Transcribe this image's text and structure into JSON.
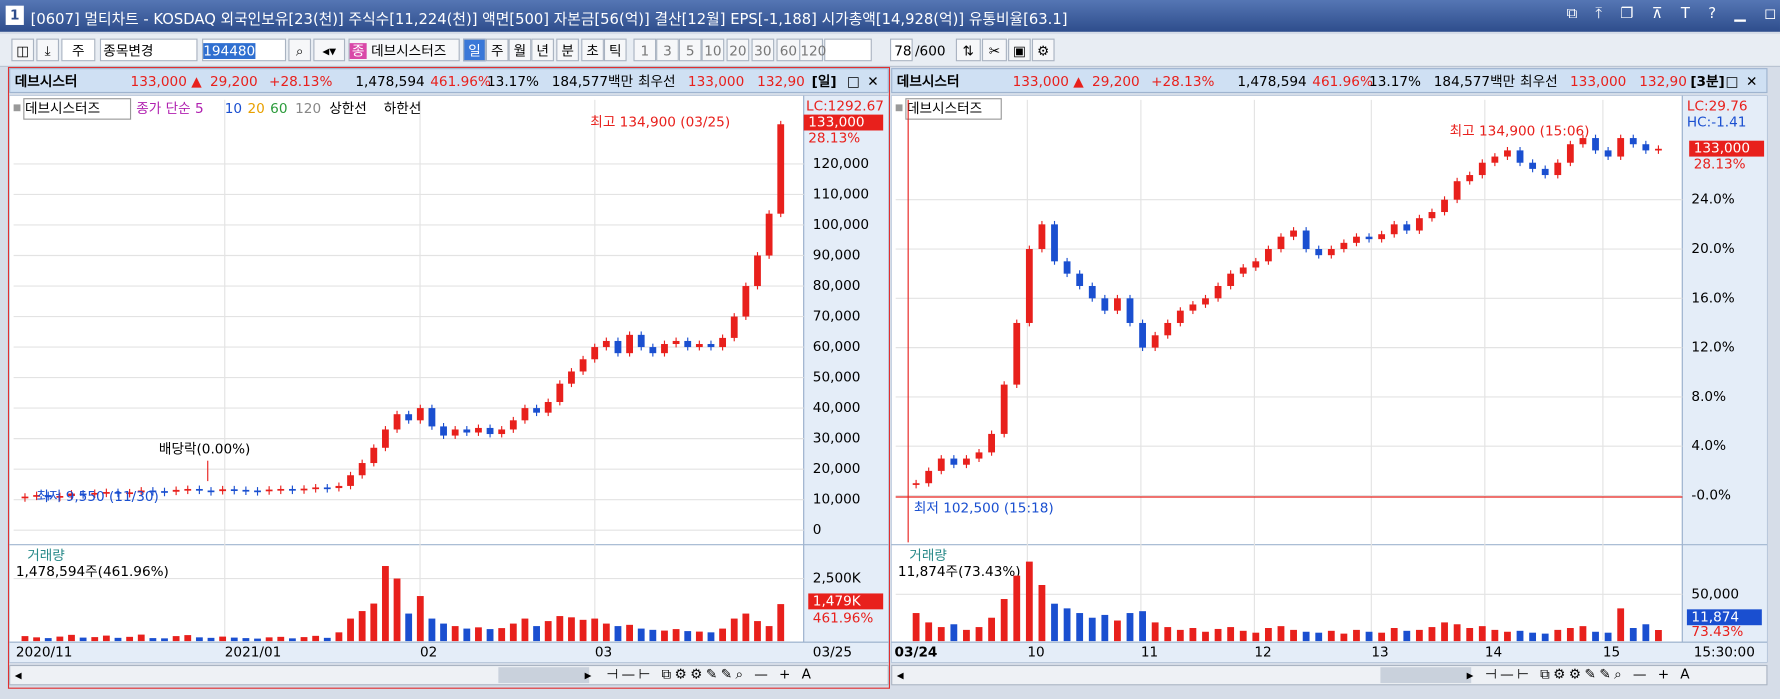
{
  "window": {
    "badge": "1",
    "title": "[0607] 멀티차트 - KOSDAQ 외국인보유[23(천)] 주식수[11,224(천)] 액면[500] 자본금[56(억)] 결산[12월] EPS[-1,188] 시가총액[14,928(억)] 유통비율[63.1]"
  },
  "toolbar": {
    "type_select": "주",
    "stock_select": "종목변경",
    "code": "194480",
    "name": "데브시스터즈",
    "periods": [
      "일",
      "주",
      "월",
      "년",
      "분",
      "초",
      "틱"
    ],
    "intervals": [
      "1",
      "3",
      "5",
      "10",
      "20",
      "30",
      "60",
      "120"
    ],
    "count": "78",
    "total": "/600"
  },
  "panels": [
    {
      "header": {
        "name": "데브시스터",
        "price": "133,000 ▲",
        "change": "29,200",
        "rate": "+28.13%",
        "volume": "1,478,594",
        "vol_rate": "461.96%",
        "turnover": "13.17%",
        "amount": "184,577백만",
        "label": "최우선",
        "bid": "133,000",
        "ask": "132,90",
        "period": "[일]"
      },
      "legend": [
        "데브시스터즈",
        "종가 단순 5",
        "10",
        "20",
        "60",
        "120",
        "상한선",
        "하한선"
      ],
      "annotations": {
        "high": "최고 134,900 (03/25)",
        "low": "최저 9,550 (11/30)",
        "ex_div": "배당락(0.00%)"
      },
      "axis_info": {
        "lc": "LC:1292.67",
        "price": "133,000",
        "rate": "28.13%"
      },
      "ylim": [
        -4000,
        141000
      ],
      "yticks": [
        0,
        {
          "value": 10000,
          "label": "10,000"
        },
        {
          "value": 20000,
          "label": "20,000"
        },
        {
          "value": 30000,
          "label": "30,000"
        },
        {
          "value": 40000,
          "label": "40,000"
        },
        {
          "value": 50000,
          "label": "50,000"
        },
        {
          "value": 60000,
          "label": "60,000"
        },
        {
          "value": 70000,
          "label": "70,000"
        },
        {
          "value": 80000,
          "label": "80,000"
        },
        {
          "value": 90000,
          "label": "90,000"
        },
        {
          "value": 100000,
          "label": "100,000"
        },
        {
          "value": 110000,
          "label": "110,000"
        },
        {
          "value": 120000,
          "label": "120,000"
        }
      ],
      "closes": [
        11000,
        11500,
        10800,
        11200,
        12000,
        11800,
        12200,
        12500,
        12000,
        12400,
        13000,
        12800,
        12600,
        13200,
        13500,
        13000,
        12800,
        13400,
        13200,
        13000,
        12900,
        13300,
        13500,
        13200,
        13600,
        14000,
        13800,
        14500,
        18000,
        22000,
        27000,
        33000,
        38000,
        36000,
        40000,
        34000,
        31000,
        33000,
        32000,
        33500,
        31500,
        33000,
        36000,
        40000,
        38500,
        42000,
        48000,
        52000,
        56000,
        60000,
        62000,
        58000,
        64000,
        60000,
        58000,
        61000,
        62000,
        60000,
        61000,
        60000,
        63000,
        70000,
        80000,
        90000,
        103700,
        133000
      ],
      "volume": {
        "title": "거래량",
        "summary": "1,478,594주(461.96%)",
        "current": "1,479K",
        "rate": "461.96%",
        "vlim": [
          0,
          3400000
        ],
        "vticks": [
          {
            "value": 2500000,
            "label": "2,500K"
          }
        ],
        "values": [
          200000,
          150000,
          120000,
          180000,
          250000,
          140000,
          160000,
          220000,
          130000,
          170000,
          260000,
          120000,
          110000,
          200000,
          240000,
          150000,
          130000,
          180000,
          140000,
          120000,
          100000,
          150000,
          170000,
          110000,
          160000,
          210000,
          130000,
          350000,
          900000,
          1200000,
          1500000,
          3000000,
          2500000,
          1100000,
          1800000,
          900000,
          700000,
          600000,
          500000,
          550000,
          480000,
          520000,
          700000,
          900000,
          600000,
          800000,
          1000000,
          950000,
          850000,
          900000,
          700000,
          600000,
          650000,
          500000,
          450000,
          420000,
          480000,
          400000,
          380000,
          350000,
          500000,
          900000,
          1100000,
          800000,
          600000,
          1478594
        ]
      },
      "xlabels": [
        "2020/11",
        "2021/01",
        "02",
        "03",
        "03/25"
      ]
    },
    {
      "header": {
        "name": "데브시스터",
        "price": "133,000 ▲",
        "change": "29,200",
        "rate": "+28.13%",
        "volume": "1,478,594",
        "vol_rate": "461.96%",
        "turnover": "13.17%",
        "amount": "184,577백만",
        "label": "최우선",
        "bid": "133,000",
        "ask": "132,90",
        "period": "[3분]"
      },
      "legend": [
        "데브시스터즈"
      ],
      "annotations": {
        "high": "최고 134,900 (15:06)",
        "low": "최저 102,500 (15:18)"
      },
      "axis_info": {
        "lc": "LC:29.76",
        "hc": "HC:-1.41",
        "price": "133,000",
        "rate": "28.13%"
      },
      "ylim": [
        -3.8,
        32.1
      ],
      "yticks": [
        {
          "value": 0,
          "label": "-0.0%"
        },
        {
          "value": 4,
          "label": "4.0%"
        },
        {
          "value": 8,
          "label": "8.0%"
        },
        {
          "value": 12,
          "label": "12.0%"
        },
        {
          "value": 16,
          "label": "16.0%"
        },
        {
          "value": 20,
          "label": "20.0%"
        },
        {
          "value": 24,
          "label": "24.0%"
        }
      ],
      "closes": [
        1.0,
        2,
        3,
        2.5,
        3,
        3.5,
        5,
        9,
        14,
        20,
        22,
        19,
        18,
        17,
        16,
        15,
        16,
        14,
        12,
        13,
        14,
        15,
        15.5,
        16,
        17,
        18,
        18.5,
        19,
        20,
        21,
        21.5,
        20,
        19.5,
        20,
        20.5,
        21,
        20.8,
        21.2,
        22,
        21.5,
        22.5,
        23,
        24,
        25.5,
        26,
        27,
        27.5,
        28,
        27,
        26.5,
        26,
        27,
        28.5,
        29,
        28,
        27.5,
        29,
        28.5,
        28,
        28.13
      ],
      "volume": {
        "title": "거래량",
        "summary": "11,874주(73.43%)",
        "current": "11,874",
        "rate": "73.43%",
        "vlim": [
          0,
          91000
        ],
        "vticks": [
          {
            "value": 50000,
            "label": "50,000"
          }
        ],
        "values": [
          30000,
          20000,
          15000,
          18000,
          12000,
          15000,
          25000,
          45000,
          70000,
          85000,
          60000,
          40000,
          35000,
          30000,
          25000,
          28000,
          22000,
          30000,
          32000,
          20000,
          15000,
          12000,
          14000,
          10000,
          13000,
          15000,
          11000,
          9000,
          14000,
          16000,
          12000,
          10000,
          9000,
          11000,
          8000,
          12000,
          10000,
          9000,
          14000,
          11000,
          12000,
          15000,
          20000,
          18000,
          14000,
          16000,
          12000,
          10000,
          11000,
          9000,
          8000,
          12000,
          14000,
          16000,
          10000,
          9000,
          35000,
          14000,
          18000,
          11874
        ]
      },
      "xlabels": [
        "03/24",
        "10",
        "11",
        "12",
        "13",
        "14",
        "15",
        "15:30:00"
      ]
    }
  ]
}
